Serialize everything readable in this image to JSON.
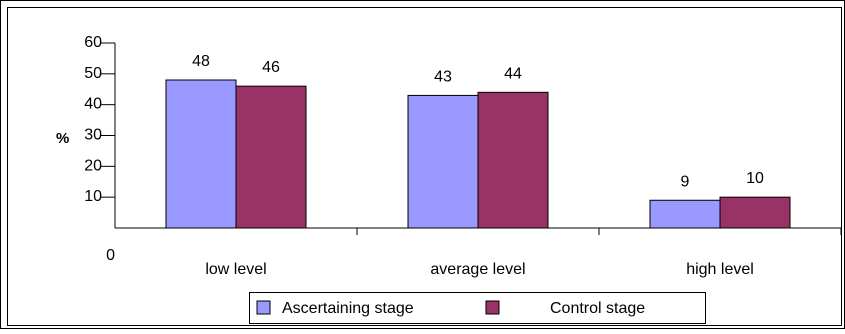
{
  "chart_data": {
    "type": "bar",
    "title": "",
    "xlabel": "",
    "ylabel": "%",
    "ylim": [
      0,
      60
    ],
    "yticks": [
      0,
      10,
      20,
      30,
      40,
      50,
      60
    ],
    "grid": false,
    "legend_position": "bottom",
    "categories": [
      "low level",
      "average level",
      "high level"
    ],
    "series": [
      {
        "name": "Ascertaining stage",
        "values": [
          48,
          43,
          9
        ],
        "color": "#9999ff"
      },
      {
        "name": "Control stage",
        "values": [
          46,
          44,
          10
        ],
        "color": "#993366"
      }
    ]
  }
}
